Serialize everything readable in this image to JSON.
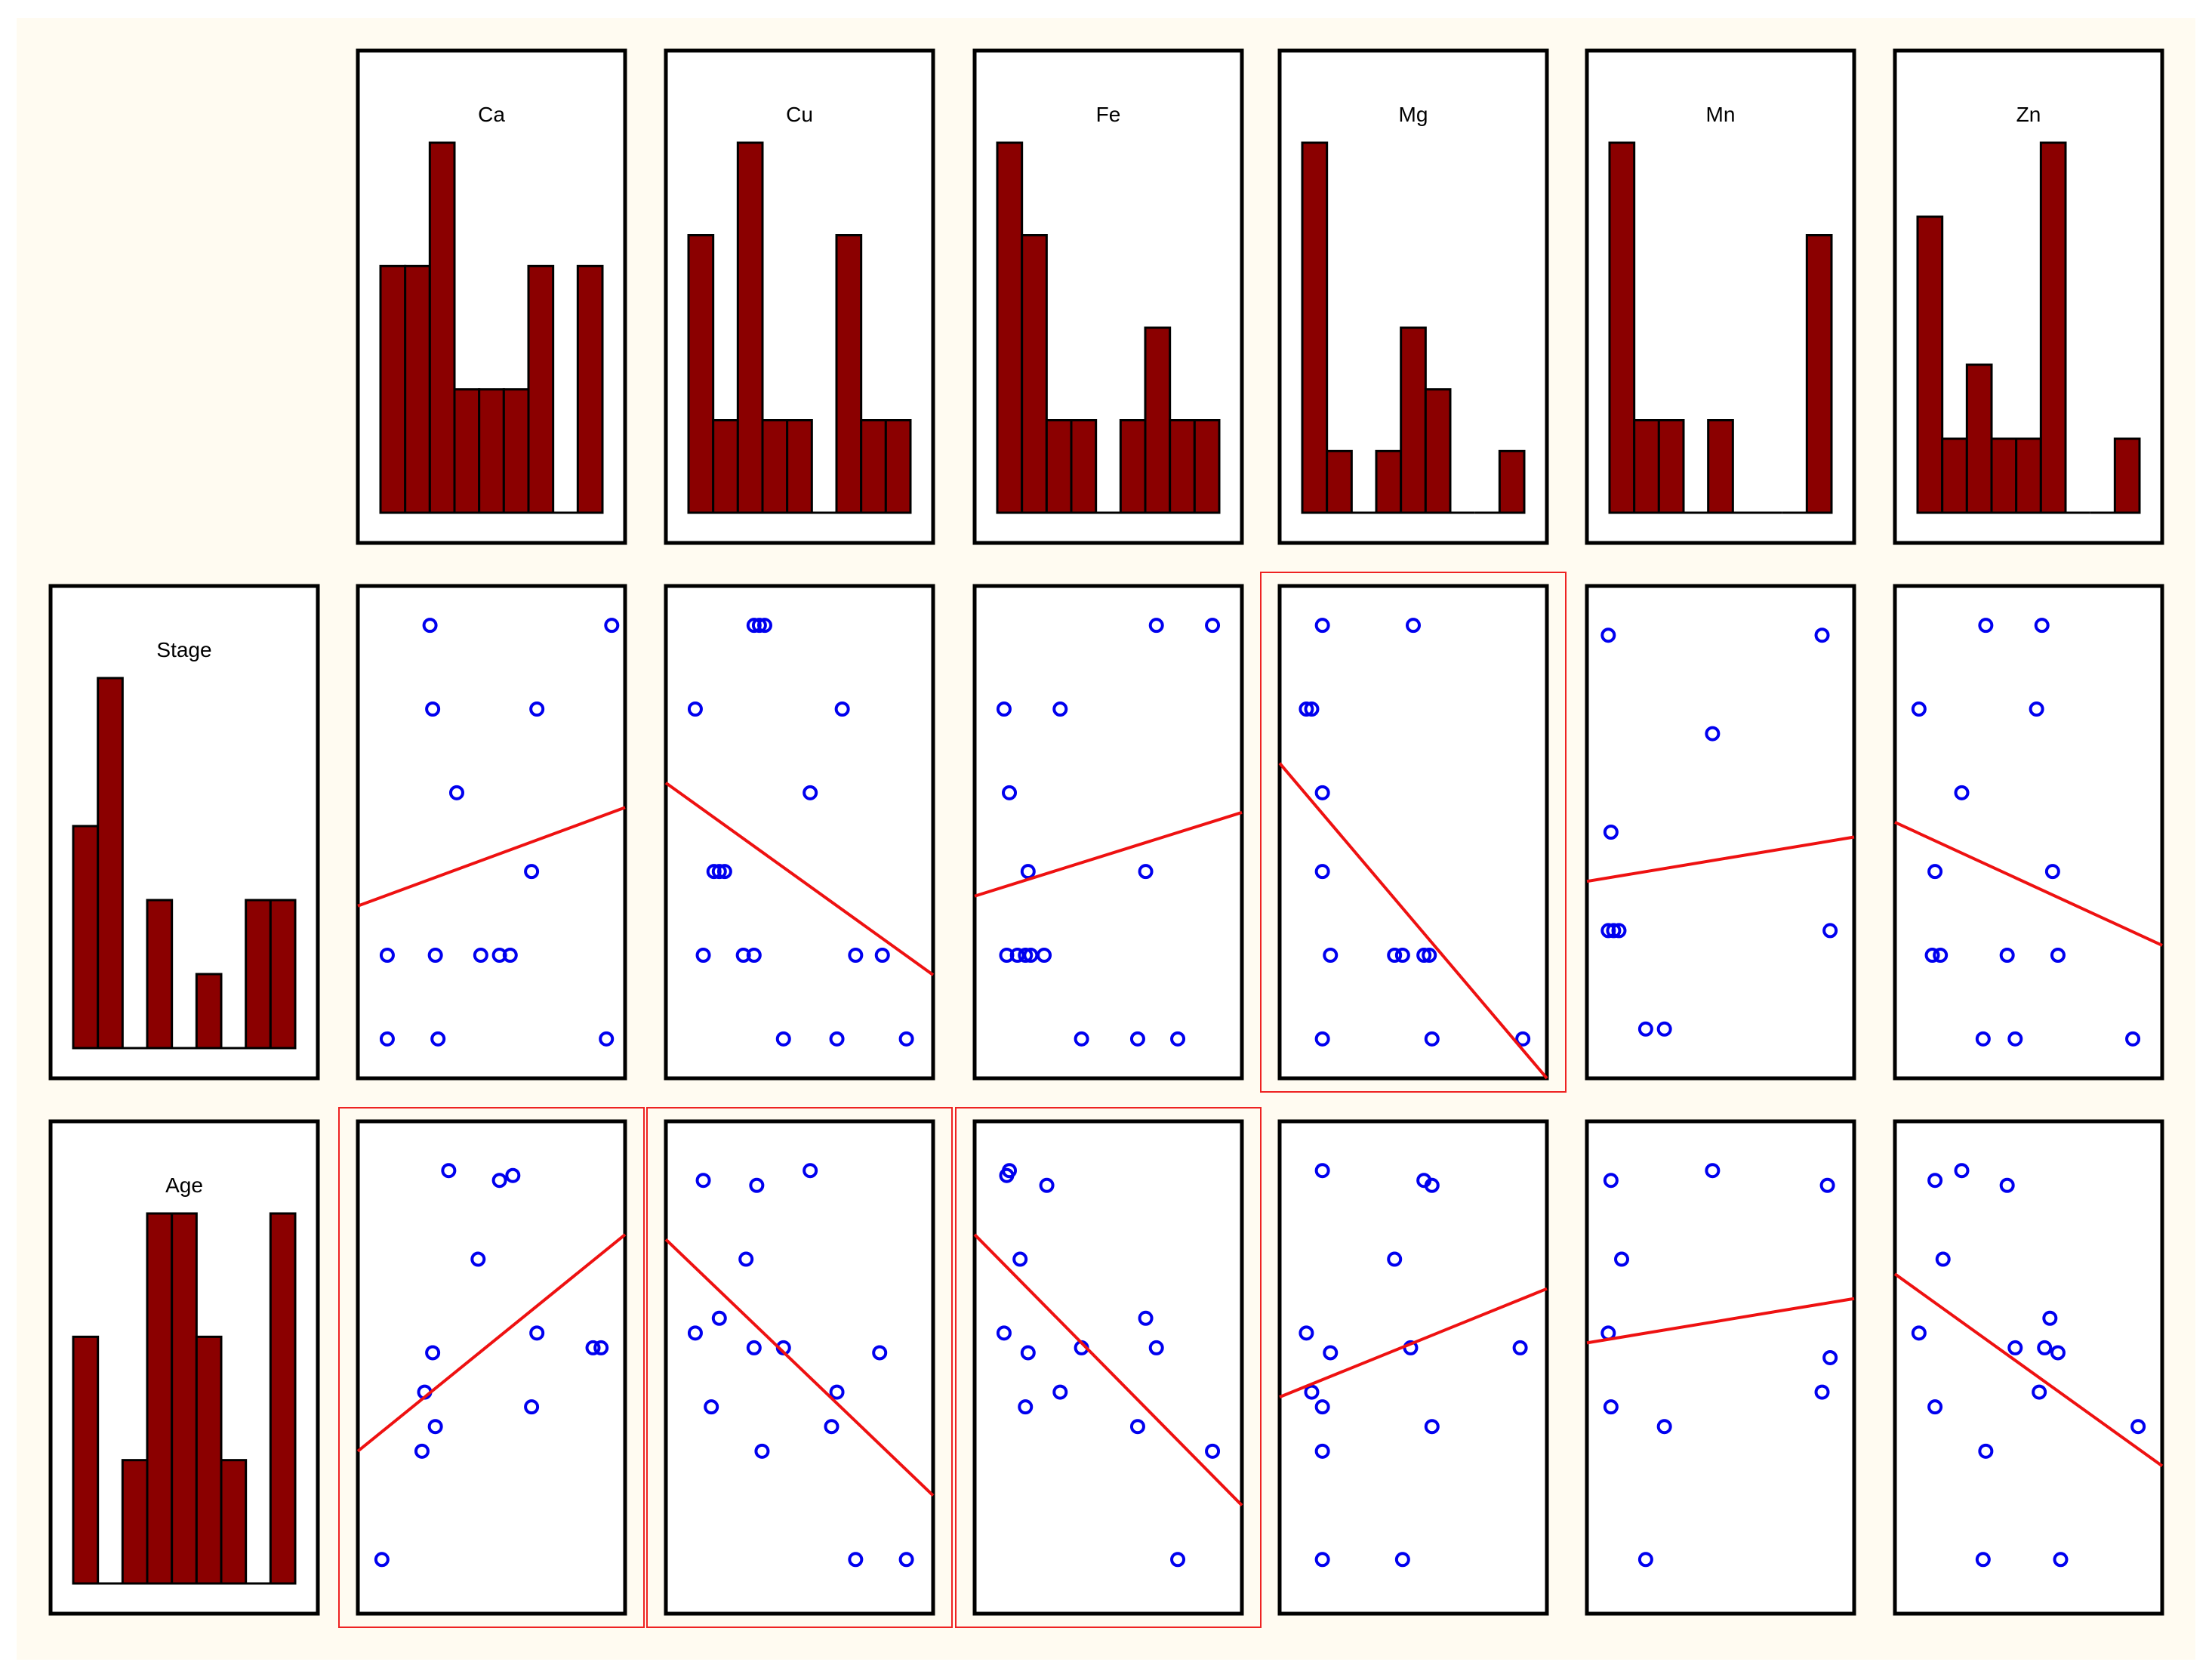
{
  "chart_data": {
    "type": "scatter-matrix",
    "variables": {
      "columns": [
        "Ca",
        "Cu",
        "Fe",
        "Mg",
        "Mn",
        "Zn"
      ],
      "rows": [
        "Stage",
        "Age"
      ]
    },
    "highlight_color": "#ee2222",
    "bar_color": "#8b0000",
    "point_color": "#0000ee",
    "fit_color": "#ee1111",
    "histograms": {
      "Ca": [
        2,
        2,
        3,
        1,
        1,
        1,
        2,
        0,
        2
      ],
      "Cu": [
        3,
        1,
        4,
        1,
        1,
        0,
        3,
        1,
        1
      ],
      "Fe": [
        4,
        3,
        1,
        1,
        0,
        1,
        2,
        1,
        1
      ],
      "Mg": [
        6,
        1,
        0,
        1,
        3,
        2,
        0,
        0,
        1
      ],
      "Mn": [
        4,
        1,
        1,
        0,
        1,
        0,
        0,
        0,
        3
      ],
      "Zn": [
        4,
        1,
        2,
        1,
        1,
        5,
        0,
        0,
        1
      ],
      "Stage": [
        3,
        5,
        0,
        2,
        0,
        1,
        0,
        2,
        2
      ],
      "Age": [
        2,
        0,
        1,
        3,
        3,
        2,
        1,
        0,
        3
      ]
    },
    "scatter": [
      {
        "row": "Stage",
        "col": "Ca",
        "highlighted": false,
        "points": [
          [
            0.27,
            0.92
          ],
          [
            0.95,
            0.92
          ],
          [
            0.28,
            0.75
          ],
          [
            0.67,
            0.75
          ],
          [
            0.37,
            0.58
          ],
          [
            0.65,
            0.42
          ],
          [
            0.11,
            0.25
          ],
          [
            0.29,
            0.25
          ],
          [
            0.46,
            0.25
          ],
          [
            0.53,
            0.25
          ],
          [
            0.57,
            0.25
          ],
          [
            0.11,
            0.08
          ],
          [
            0.3,
            0.08
          ],
          [
            0.93,
            0.08
          ]
        ],
        "fit": [
          [
            0,
            0.35
          ],
          [
            1,
            0.55
          ]
        ]
      },
      {
        "row": "Stage",
        "col": "Cu",
        "highlighted": false,
        "points": [
          [
            0.33,
            0.92
          ],
          [
            0.35,
            0.92
          ],
          [
            0.37,
            0.92
          ],
          [
            0.11,
            0.75
          ],
          [
            0.66,
            0.75
          ],
          [
            0.54,
            0.58
          ],
          [
            0.18,
            0.42
          ],
          [
            0.2,
            0.42
          ],
          [
            0.22,
            0.42
          ],
          [
            0.14,
            0.25
          ],
          [
            0.29,
            0.25
          ],
          [
            0.33,
            0.25
          ],
          [
            0.71,
            0.25
          ],
          [
            0.81,
            0.25
          ],
          [
            0.44,
            0.08
          ],
          [
            0.64,
            0.08
          ],
          [
            0.9,
            0.08
          ]
        ],
        "fit": [
          [
            0,
            0.6
          ],
          [
            1,
            0.21
          ]
        ]
      },
      {
        "row": "Stage",
        "col": "Fe",
        "highlighted": false,
        "points": [
          [
            0.68,
            0.92
          ],
          [
            0.89,
            0.92
          ],
          [
            0.11,
            0.75
          ],
          [
            0.32,
            0.75
          ],
          [
            0.13,
            0.58
          ],
          [
            0.2,
            0.42
          ],
          [
            0.64,
            0.42
          ],
          [
            0.12,
            0.25
          ],
          [
            0.16,
            0.25
          ],
          [
            0.19,
            0.25
          ],
          [
            0.21,
            0.25
          ],
          [
            0.26,
            0.25
          ],
          [
            0.4,
            0.08
          ],
          [
            0.61,
            0.08
          ],
          [
            0.76,
            0.08
          ]
        ],
        "fit": [
          [
            0,
            0.37
          ],
          [
            1,
            0.54
          ]
        ]
      },
      {
        "row": "Stage",
        "col": "Mg",
        "highlighted": true,
        "points": [
          [
            0.16,
            0.92
          ],
          [
            0.5,
            0.92
          ],
          [
            0.1,
            0.75
          ],
          [
            0.12,
            0.75
          ],
          [
            0.16,
            0.58
          ],
          [
            0.16,
            0.42
          ],
          [
            0.19,
            0.25
          ],
          [
            0.43,
            0.25
          ],
          [
            0.46,
            0.25
          ],
          [
            0.54,
            0.25
          ],
          [
            0.56,
            0.25
          ],
          [
            0.16,
            0.08
          ],
          [
            0.57,
            0.08
          ],
          [
            0.91,
            0.08
          ]
        ],
        "fit": [
          [
            0,
            0.64
          ],
          [
            1,
            0.0
          ]
        ]
      },
      {
        "row": "Stage",
        "col": "Mn",
        "highlighted": false,
        "points": [
          [
            0.08,
            0.9
          ],
          [
            0.88,
            0.9
          ],
          [
            0.47,
            0.7
          ],
          [
            0.09,
            0.5
          ],
          [
            0.08,
            0.3
          ],
          [
            0.1,
            0.3
          ],
          [
            0.12,
            0.3
          ],
          [
            0.91,
            0.3
          ],
          [
            0.22,
            0.1
          ],
          [
            0.29,
            0.1
          ]
        ],
        "fit": [
          [
            0,
            0.4
          ],
          [
            1,
            0.49
          ]
        ]
      },
      {
        "row": "Stage",
        "col": "Zn",
        "highlighted": false,
        "points": [
          [
            0.34,
            0.92
          ],
          [
            0.55,
            0.92
          ],
          [
            0.09,
            0.75
          ],
          [
            0.53,
            0.75
          ],
          [
            0.25,
            0.58
          ],
          [
            0.15,
            0.42
          ],
          [
            0.59,
            0.42
          ],
          [
            0.14,
            0.25
          ],
          [
            0.17,
            0.25
          ],
          [
            0.42,
            0.25
          ],
          [
            0.61,
            0.25
          ],
          [
            0.33,
            0.08
          ],
          [
            0.45,
            0.08
          ],
          [
            0.89,
            0.08
          ]
        ],
        "fit": [
          [
            0,
            0.52
          ],
          [
            1,
            0.27
          ]
        ]
      },
      {
        "row": "Age",
        "col": "Ca",
        "highlighted": true,
        "points": [
          [
            0.34,
            0.9
          ],
          [
            0.53,
            0.88
          ],
          [
            0.58,
            0.89
          ],
          [
            0.45,
            0.72
          ],
          [
            0.67,
            0.57
          ],
          [
            0.88,
            0.54
          ],
          [
            0.91,
            0.54
          ],
          [
            0.28,
            0.53
          ],
          [
            0.25,
            0.45
          ],
          [
            0.29,
            0.38
          ],
          [
            0.65,
            0.42
          ],
          [
            0.24,
            0.33
          ],
          [
            0.09,
            0.11
          ]
        ],
        "fit": [
          [
            0,
            0.33
          ],
          [
            1,
            0.77
          ]
        ]
      },
      {
        "row": "Age",
        "col": "Cu",
        "highlighted": true,
        "points": [
          [
            0.14,
            0.88
          ],
          [
            0.34,
            0.87
          ],
          [
            0.54,
            0.9
          ],
          [
            0.3,
            0.72
          ],
          [
            0.2,
            0.6
          ],
          [
            0.11,
            0.57
          ],
          [
            0.33,
            0.54
          ],
          [
            0.44,
            0.54
          ],
          [
            0.64,
            0.45
          ],
          [
            0.8,
            0.53
          ],
          [
            0.17,
            0.42
          ],
          [
            0.62,
            0.38
          ],
          [
            0.36,
            0.33
          ],
          [
            0.71,
            0.11
          ],
          [
            0.9,
            0.11
          ]
        ],
        "fit": [
          [
            0,
            0.76
          ],
          [
            1,
            0.24
          ]
        ]
      },
      {
        "row": "Age",
        "col": "Fe",
        "highlighted": true,
        "points": [
          [
            0.13,
            0.9
          ],
          [
            0.12,
            0.89
          ],
          [
            0.27,
            0.87
          ],
          [
            0.17,
            0.72
          ],
          [
            0.11,
            0.57
          ],
          [
            0.2,
            0.53
          ],
          [
            0.4,
            0.54
          ],
          [
            0.64,
            0.6
          ],
          [
            0.68,
            0.54
          ],
          [
            0.19,
            0.42
          ],
          [
            0.32,
            0.45
          ],
          [
            0.61,
            0.38
          ],
          [
            0.89,
            0.33
          ],
          [
            0.76,
            0.11
          ]
        ],
        "fit": [
          [
            0,
            0.77
          ],
          [
            1,
            0.22
          ]
        ]
      },
      {
        "row": "Age",
        "col": "Mg",
        "highlighted": false,
        "points": [
          [
            0.16,
            0.9
          ],
          [
            0.54,
            0.88
          ],
          [
            0.57,
            0.87
          ],
          [
            0.43,
            0.72
          ],
          [
            0.1,
            0.57
          ],
          [
            0.19,
            0.53
          ],
          [
            0.49,
            0.54
          ],
          [
            0.9,
            0.54
          ],
          [
            0.12,
            0.45
          ],
          [
            0.16,
            0.42
          ],
          [
            0.57,
            0.38
          ],
          [
            0.16,
            0.33
          ],
          [
            0.16,
            0.11
          ],
          [
            0.46,
            0.11
          ]
        ],
        "fit": [
          [
            0,
            0.44
          ],
          [
            1,
            0.66
          ]
        ]
      },
      {
        "row": "Age",
        "col": "Mn",
        "highlighted": false,
        "points": [
          [
            0.09,
            0.88
          ],
          [
            0.47,
            0.9
          ],
          [
            0.9,
            0.87
          ],
          [
            0.13,
            0.72
          ],
          [
            0.08,
            0.57
          ],
          [
            0.91,
            0.52
          ],
          [
            0.88,
            0.45
          ],
          [
            0.09,
            0.42
          ],
          [
            0.29,
            0.38
          ],
          [
            0.22,
            0.11
          ]
        ],
        "fit": [
          [
            0,
            0.55
          ],
          [
            1,
            0.64
          ]
        ]
      },
      {
        "row": "Age",
        "col": "Zn",
        "highlighted": false,
        "points": [
          [
            0.15,
            0.88
          ],
          [
            0.25,
            0.9
          ],
          [
            0.42,
            0.87
          ],
          [
            0.18,
            0.72
          ],
          [
            0.58,
            0.6
          ],
          [
            0.09,
            0.57
          ],
          [
            0.45,
            0.54
          ],
          [
            0.56,
            0.54
          ],
          [
            0.61,
            0.53
          ],
          [
            0.54,
            0.45
          ],
          [
            0.15,
            0.42
          ],
          [
            0.91,
            0.38
          ],
          [
            0.34,
            0.33
          ],
          [
            0.33,
            0.11
          ],
          [
            0.62,
            0.11
          ]
        ],
        "fit": [
          [
            0,
            0.69
          ],
          [
            1,
            0.3
          ]
        ]
      }
    ]
  }
}
